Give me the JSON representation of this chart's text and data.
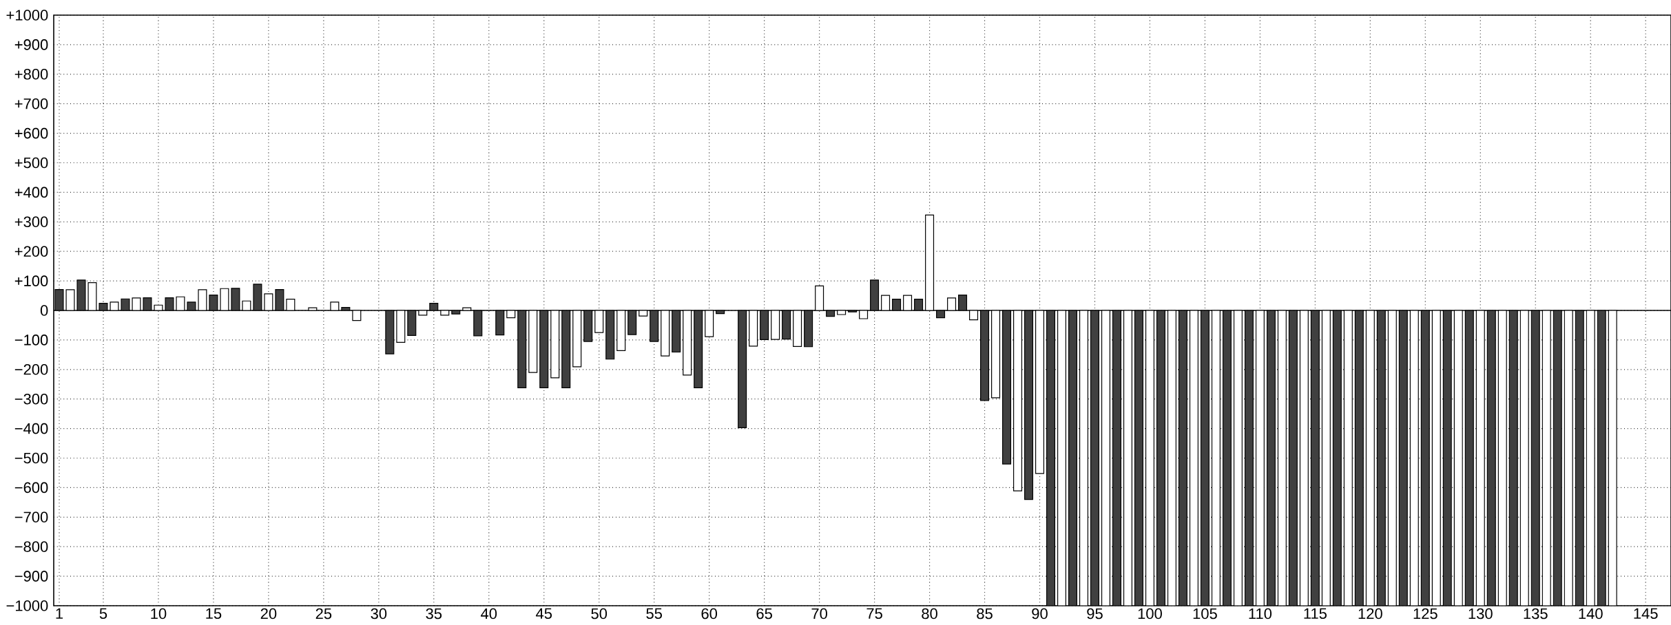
{
  "chart_data": {
    "type": "bar",
    "x": [
      1,
      2,
      3,
      4,
      5,
      6,
      7,
      8,
      9,
      10,
      11,
      12,
      13,
      14,
      15,
      16,
      17,
      18,
      19,
      20,
      21,
      22,
      23,
      24,
      25,
      26,
      27,
      28,
      29,
      30,
      31,
      32,
      33,
      34,
      35,
      36,
      37,
      38,
      39,
      40,
      41,
      42,
      43,
      44,
      45,
      46,
      47,
      48,
      49,
      50,
      51,
      52,
      53,
      54,
      55,
      56,
      57,
      58,
      59,
      60,
      61,
      62,
      63,
      64,
      65,
      66,
      67,
      68,
      69,
      70,
      71,
      72,
      73,
      74,
      75,
      76,
      77,
      78,
      79,
      80,
      81,
      82,
      83,
      84,
      85,
      86,
      87,
      88,
      89,
      90,
      91,
      92,
      93,
      94,
      95,
      96,
      97,
      98,
      99,
      100,
      101,
      102,
      103,
      104,
      105,
      106,
      107,
      108,
      109,
      110,
      111,
      112,
      113,
      114,
      115,
      116,
      117,
      118,
      119,
      120,
      121,
      122,
      123,
      124,
      125,
      126,
      127,
      128,
      129,
      130,
      131,
      132,
      133,
      134,
      135,
      136,
      137,
      138,
      139,
      140,
      141,
      142
    ],
    "values": [
      71,
      70,
      103,
      94,
      24,
      28,
      39,
      42,
      43,
      18,
      43,
      46,
      28,
      70,
      52,
      74,
      75,
      32,
      89,
      56,
      71,
      38,
      0,
      9,
      0,
      28,
      10,
      -34,
      0,
      0,
      -147,
      -108,
      -85,
      -16,
      24,
      -16,
      -12,
      9,
      -86,
      0,
      -83,
      -25,
      -262,
      -210,
      -262,
      -228,
      -262,
      -191,
      -105,
      -75,
      -165,
      -136,
      -82,
      -19,
      -105,
      -154,
      -141,
      -219,
      -262,
      -89,
      -11,
      0,
      -397,
      -121,
      -99,
      -98,
      -97,
      -122,
      -123,
      83,
      -20,
      -14,
      -5,
      -28,
      103,
      51,
      38,
      51,
      38,
      323,
      -25,
      42,
      52,
      -32,
      -305,
      -296,
      -520,
      -611,
      -640,
      -552,
      -1000,
      -1000,
      -1000,
      -1000,
      -1000,
      -1000,
      -1000,
      -1000,
      -1000,
      -1000,
      -1000,
      -1000,
      -1000,
      -1000,
      -1000,
      -1000,
      -1000,
      -1000,
      -1000,
      -1000,
      -1000,
      -1000,
      -1000,
      -1000,
      -1000,
      -1000,
      -1000,
      -1000,
      -1000,
      -1000,
      -1000,
      -1000,
      -1000,
      -1000,
      -1000,
      -1000,
      -1000,
      -1000,
      -1000,
      -1000,
      -1000,
      -1000,
      -1000,
      -1000,
      -1000,
      -1000,
      -1000,
      -1000,
      -1000,
      -1000,
      -1000,
      -1000
    ],
    "colors": [
      "#404040",
      "#ffffff",
      "#404040",
      "#ffffff",
      "#404040",
      "#ffffff",
      "#404040",
      "#ffffff",
      "#404040",
      "#ffffff",
      "#404040",
      "#ffffff",
      "#404040",
      "#ffffff",
      "#404040",
      "#ffffff",
      "#404040",
      "#ffffff",
      "#404040",
      "#ffffff",
      "#404040",
      "#ffffff",
      "#404040",
      "#ffffff",
      "#404040",
      "#ffffff",
      "#404040",
      "#ffffff",
      "#404040",
      "#ffffff",
      "#404040",
      "#ffffff",
      "#404040",
      "#ffffff",
      "#404040",
      "#ffffff",
      "#404040",
      "#ffffff",
      "#404040",
      "#ffffff",
      "#404040",
      "#ffffff",
      "#404040",
      "#ffffff",
      "#404040",
      "#ffffff",
      "#404040",
      "#ffffff",
      "#404040",
      "#ffffff",
      "#404040",
      "#ffffff",
      "#404040",
      "#ffffff",
      "#404040",
      "#ffffff",
      "#404040",
      "#ffffff",
      "#404040",
      "#ffffff",
      "#404040",
      "#ffffff",
      "#404040",
      "#ffffff",
      "#404040",
      "#ffffff",
      "#404040",
      "#ffffff",
      "#404040",
      "#ffffff",
      "#404040",
      "#ffffff",
      "#404040",
      "#ffffff",
      "#404040",
      "#ffffff",
      "#404040",
      "#ffffff",
      "#404040",
      "#ffffff",
      "#404040",
      "#ffffff",
      "#404040",
      "#ffffff",
      "#404040",
      "#ffffff",
      "#404040",
      "#ffffff",
      "#404040",
      "#ffffff",
      "#404040",
      "#ffffff",
      "#404040",
      "#ffffff",
      "#404040",
      "#ffffff",
      "#404040",
      "#ffffff",
      "#404040",
      "#ffffff",
      "#404040",
      "#ffffff",
      "#404040",
      "#ffffff",
      "#404040",
      "#ffffff",
      "#404040",
      "#ffffff",
      "#404040",
      "#ffffff",
      "#404040",
      "#ffffff",
      "#404040",
      "#ffffff",
      "#404040",
      "#ffffff",
      "#404040",
      "#ffffff",
      "#404040",
      "#ffffff",
      "#404040",
      "#ffffff",
      "#404040",
      "#ffffff",
      "#404040",
      "#ffffff",
      "#404040",
      "#ffffff",
      "#404040",
      "#ffffff",
      "#404040",
      "#ffffff",
      "#404040",
      "#ffffff",
      "#404040",
      "#ffffff",
      "#404040",
      "#ffffff",
      "#404040",
      "#ffffff",
      "#404040",
      "#ffffff"
    ],
    "xlim": [
      0.5,
      147.3
    ],
    "xticks": [
      1,
      5,
      10,
      15,
      20,
      25,
      30,
      35,
      40,
      45,
      50,
      55,
      60,
      65,
      70,
      75,
      80,
      85,
      90,
      95,
      100,
      105,
      110,
      115,
      120,
      125,
      130,
      135,
      140,
      145
    ],
    "ylim": [
      -1000,
      1000
    ],
    "yticks": [
      {
        "value": 1000,
        "label": "+1000"
      },
      {
        "value": 900,
        "label": "+900"
      },
      {
        "value": 800,
        "label": "+800"
      },
      {
        "value": 700,
        "label": "+700"
      },
      {
        "value": 600,
        "label": "+600"
      },
      {
        "value": 500,
        "label": "+500"
      },
      {
        "value": 400,
        "label": "+400"
      },
      {
        "value": 300,
        "label": "+300"
      },
      {
        "value": 200,
        "label": "+200"
      },
      {
        "value": 100,
        "label": "+100"
      },
      {
        "value": 0,
        "label": "0"
      },
      {
        "value": -100,
        "label": "−100"
      },
      {
        "value": -200,
        "label": "−200"
      },
      {
        "value": -300,
        "label": "−300"
      },
      {
        "value": -400,
        "label": "−400"
      },
      {
        "value": -500,
        "label": "−500"
      },
      {
        "value": -600,
        "label": "−600"
      },
      {
        "value": -700,
        "label": "−700"
      },
      {
        "value": -800,
        "label": "−800"
      },
      {
        "value": -900,
        "label": "−900"
      },
      {
        "value": -1000,
        "label": "−1000"
      }
    ],
    "grid": true
  }
}
